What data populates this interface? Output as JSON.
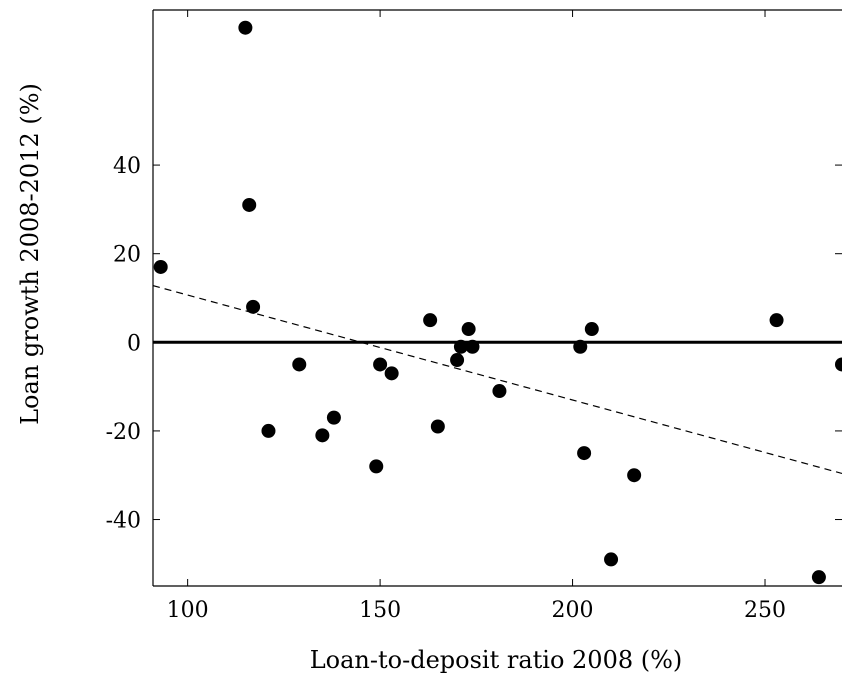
{
  "chart_data": {
    "type": "scatter",
    "xlabel": "Loan-to-deposit ratio 2008 (%)",
    "ylabel": "Loan growth 2008-2012 (%)",
    "xlim": [
      91,
      270
    ],
    "ylim": [
      -55,
      75
    ],
    "xticks": [
      100,
      150,
      200,
      250
    ],
    "yticks": [
      -40,
      -20,
      0,
      20,
      40
    ],
    "xtick_labels": [
      "100",
      "150",
      "200",
      "250"
    ],
    "ytick_labels": [
      "-40",
      "-20",
      "0",
      "20",
      "40"
    ],
    "grid": false,
    "legend": "none",
    "zero_line": {
      "y": 0,
      "style": "solid"
    },
    "trend_line": {
      "style": "dashed",
      "points": [
        [
          91,
          12.8
        ],
        [
          270,
          -29.6
        ]
      ]
    },
    "point_color": "#000000",
    "points": [
      {
        "x": 93,
        "y": 17
      },
      {
        "x": 115,
        "y": 71
      },
      {
        "x": 116,
        "y": 31
      },
      {
        "x": 117,
        "y": 8
      },
      {
        "x": 121,
        "y": -20
      },
      {
        "x": 129,
        "y": -5
      },
      {
        "x": 135,
        "y": -21
      },
      {
        "x": 138,
        "y": -17
      },
      {
        "x": 149,
        "y": -28
      },
      {
        "x": 150,
        "y": -5
      },
      {
        "x": 153,
        "y": -7
      },
      {
        "x": 163,
        "y": 5
      },
      {
        "x": 165,
        "y": -19
      },
      {
        "x": 170,
        "y": -4
      },
      {
        "x": 171,
        "y": -1
      },
      {
        "x": 173,
        "y": 3
      },
      {
        "x": 174,
        "y": -1
      },
      {
        "x": 181,
        "y": -11
      },
      {
        "x": 202,
        "y": -1
      },
      {
        "x": 203,
        "y": -25
      },
      {
        "x": 205,
        "y": 3
      },
      {
        "x": 210,
        "y": -49
      },
      {
        "x": 216,
        "y": -30
      },
      {
        "x": 253,
        "y": 5
      },
      {
        "x": 264,
        "y": -53
      },
      {
        "x": 270,
        "y": -5
      }
    ]
  }
}
